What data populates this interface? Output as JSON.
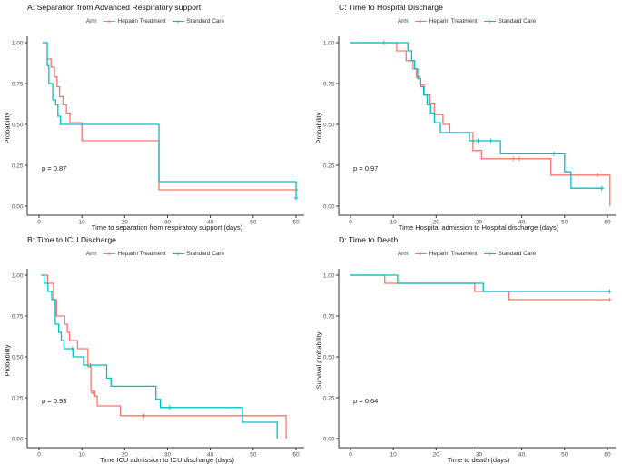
{
  "palette": {
    "heparin_treatment": "#F8766D",
    "standard_care": "#00BFC4",
    "axis": "#333333",
    "tick_label": "#4d4d4d"
  },
  "chart_data": [
    {
      "id": "A",
      "type": "line",
      "subtype": "kaplan-meier-step",
      "title": "A: Separation from Advanced Respiratory support",
      "xlabel": "Time to separation from respiratory support (days)",
      "ylabel": "Probability",
      "p_label": "p = 0.87",
      "legend": {
        "title": "Arm",
        "entries": [
          "Heparin Treatment",
          "Standard Care"
        ]
      },
      "xlim": [
        0,
        62
      ],
      "ylim": [
        0,
        1
      ],
      "grid": false,
      "xticks": [
        0,
        10,
        20,
        30,
        40,
        50,
        60
      ],
      "yticks": [
        0,
        0.25,
        0.5,
        0.75,
        1
      ],
      "ytick_labels": [
        "0.00",
        "0.25",
        "0.50",
        "0.75",
        "1.00"
      ],
      "series": [
        {
          "name": "Heparin Treatment",
          "color": "#F8766D",
          "steps": [
            [
              1.9,
              0.9
            ],
            [
              2.8,
              0.9
            ],
            [
              2.8,
              0.85
            ],
            [
              3.6,
              0.85
            ],
            [
              3.6,
              0.79
            ],
            [
              4.2,
              0.79
            ],
            [
              4.2,
              0.73
            ],
            [
              4.8,
              0.73
            ],
            [
              4.8,
              0.67
            ],
            [
              5.6,
              0.67
            ],
            [
              5.6,
              0.62
            ],
            [
              6.4,
              0.62
            ],
            [
              6.4,
              0.57
            ],
            [
              7.2,
              0.57
            ],
            [
              7.2,
              0.51
            ],
            [
              10,
              0.51
            ],
            [
              10,
              0.4
            ],
            [
              28,
              0.4
            ],
            [
              28,
              0.1
            ],
            [
              60.5,
              0.1
            ]
          ],
          "censors": []
        },
        {
          "name": "Standard Care",
          "color": "#00BFC4",
          "steps": [
            [
              0.8,
              1
            ],
            [
              1.9,
              1
            ],
            [
              1.9,
              0.86
            ],
            [
              2.3,
              0.86
            ],
            [
              2.3,
              0.75
            ],
            [
              3.2,
              0.75
            ],
            [
              3.2,
              0.65
            ],
            [
              3.9,
              0.65
            ],
            [
              3.9,
              0.62
            ],
            [
              4.4,
              0.62
            ],
            [
              4.4,
              0.55
            ],
            [
              5,
              0.55
            ],
            [
              5,
              0.5
            ],
            [
              28,
              0.5
            ],
            [
              28,
              0.15
            ],
            [
              60,
              0.15
            ],
            [
              60,
              0.05
            ]
          ],
          "censors": [
            [
              60,
              0.05
            ]
          ]
        }
      ]
    },
    {
      "id": "C",
      "type": "line",
      "subtype": "kaplan-meier-step",
      "title": "C: Time to Hospital Discharge",
      "xlabel": "Time Hospital admission to Hospital discharge (days)",
      "ylabel": "Probability",
      "p_label": "p = 0.97",
      "legend": {
        "title": "Arm",
        "entries": [
          "Heparin Treatment",
          "Standard Care"
        ]
      },
      "xlim": [
        0,
        62
      ],
      "ylim": [
        0,
        1
      ],
      "grid": false,
      "xticks": [
        0,
        10,
        20,
        30,
        40,
        50,
        60
      ],
      "yticks": [
        0,
        0.25,
        0.5,
        0.75,
        1
      ],
      "ytick_labels": [
        "0.00",
        "0.25",
        "0.50",
        "0.75",
        "1.00"
      ],
      "series": [
        {
          "name": "Heparin Treatment",
          "color": "#F8766D",
          "steps": [
            [
              0,
              1
            ],
            [
              10.8,
              1
            ],
            [
              10.8,
              0.95
            ],
            [
              13,
              0.95
            ],
            [
              13,
              0.89
            ],
            [
              14.6,
              0.89
            ],
            [
              14.6,
              0.84
            ],
            [
              15.4,
              0.84
            ],
            [
              15.4,
              0.79
            ],
            [
              16.2,
              0.79
            ],
            [
              16.2,
              0.74
            ],
            [
              17.2,
              0.74
            ],
            [
              17.2,
              0.68
            ],
            [
              18.6,
              0.68
            ],
            [
              18.6,
              0.63
            ],
            [
              19.6,
              0.63
            ],
            [
              19.6,
              0.56
            ],
            [
              21.6,
              0.56
            ],
            [
              21.6,
              0.5
            ],
            [
              23.2,
              0.5
            ],
            [
              23.2,
              0.45
            ],
            [
              28.6,
              0.45
            ],
            [
              28.6,
              0.34
            ],
            [
              30.6,
              0.34
            ],
            [
              30.6,
              0.29
            ],
            [
              46.8,
              0.29
            ],
            [
              46.8,
              0.19
            ],
            [
              60.6,
              0.19
            ],
            [
              60.6,
              0
            ]
          ],
          "censors": [
            [
              38,
              0.29
            ],
            [
              39.4,
              0.29
            ],
            [
              57.7,
              0.19
            ]
          ]
        },
        {
          "name": "Standard Care",
          "color": "#00BFC4",
          "steps": [
            [
              0,
              1
            ],
            [
              13.4,
              1
            ],
            [
              13.4,
              0.95
            ],
            [
              14.3,
              0.95
            ],
            [
              14.3,
              0.89
            ],
            [
              15,
              0.89
            ],
            [
              15,
              0.84
            ],
            [
              15.7,
              0.84
            ],
            [
              15.7,
              0.78
            ],
            [
              16.4,
              0.78
            ],
            [
              16.4,
              0.73
            ],
            [
              17.1,
              0.73
            ],
            [
              17.1,
              0.68
            ],
            [
              17.9,
              0.68
            ],
            [
              17.9,
              0.62
            ],
            [
              18.7,
              0.62
            ],
            [
              18.7,
              0.57
            ],
            [
              19.6,
              0.57
            ],
            [
              19.6,
              0.51
            ],
            [
              21,
              0.51
            ],
            [
              21,
              0.45
            ],
            [
              27.8,
              0.45
            ],
            [
              27.8,
              0.4
            ],
            [
              35,
              0.4
            ],
            [
              35,
              0.32
            ],
            [
              50,
              0.32
            ],
            [
              50,
              0.21
            ],
            [
              51.5,
              0.21
            ],
            [
              51.5,
              0.11
            ],
            [
              58.7,
              0.11
            ]
          ],
          "censors": [
            [
              7.8,
              1
            ],
            [
              29.8,
              0.4
            ],
            [
              32.8,
              0.4
            ],
            [
              47.5,
              0.32
            ],
            [
              58.7,
              0.11
            ]
          ]
        }
      ]
    },
    {
      "id": "B",
      "type": "line",
      "subtype": "kaplan-meier-step",
      "title": "B: Time to ICU Discharge",
      "xlabel": "Time ICU admission to ICU discharge (days)",
      "ylabel": "Probability",
      "p_label": "p = 0.93",
      "legend": {
        "title": "Arm",
        "entries": [
          "Heparin Treatment",
          "Standard Care"
        ]
      },
      "xlim": [
        0,
        62
      ],
      "ylim": [
        0,
        1
      ],
      "grid": false,
      "xticks": [
        0,
        10,
        20,
        30,
        40,
        50,
        60
      ],
      "yticks": [
        0,
        0.25,
        0.5,
        0.75,
        1
      ],
      "ytick_labels": [
        "0.00",
        "0.25",
        "0.50",
        "0.75",
        "1.00"
      ],
      "series": [
        {
          "name": "Heparin Treatment",
          "color": "#F8766D",
          "steps": [
            [
              0.5,
              1
            ],
            [
              2,
              1
            ],
            [
              2,
              0.95
            ],
            [
              3.4,
              0.95
            ],
            [
              3.4,
              0.85
            ],
            [
              4.1,
              0.85
            ],
            [
              4.1,
              0.75
            ],
            [
              6,
              0.75
            ],
            [
              6,
              0.7
            ],
            [
              6.6,
              0.7
            ],
            [
              6.6,
              0.65
            ],
            [
              7.1,
              0.65
            ],
            [
              7.1,
              0.6
            ],
            [
              9,
              0.6
            ],
            [
              9,
              0.55
            ],
            [
              11.4,
              0.55
            ],
            [
              11.4,
              0.44
            ],
            [
              12.1,
              0.44
            ],
            [
              12.1,
              0.29
            ],
            [
              13,
              0.29
            ],
            [
              13,
              0.26
            ],
            [
              13.6,
              0.26
            ],
            [
              13.6,
              0.2
            ],
            [
              19,
              0.2
            ],
            [
              19,
              0.14
            ],
            [
              57.7,
              0.14
            ],
            [
              57.7,
              0
            ]
          ],
          "censors": [
            [
              12.6,
              0.28
            ],
            [
              24.5,
              0.14
            ]
          ]
        },
        {
          "name": "Standard Care",
          "color": "#00BFC4",
          "steps": [
            [
              0.5,
              1
            ],
            [
              1.2,
              1
            ],
            [
              1.2,
              0.95
            ],
            [
              2.1,
              0.95
            ],
            [
              2.1,
              0.9
            ],
            [
              3,
              0.9
            ],
            [
              3,
              0.85
            ],
            [
              3.8,
              0.85
            ],
            [
              3.8,
              0.7
            ],
            [
              4.6,
              0.7
            ],
            [
              4.6,
              0.65
            ],
            [
              5.2,
              0.65
            ],
            [
              5.2,
              0.6
            ],
            [
              5.8,
              0.6
            ],
            [
              5.8,
              0.55
            ],
            [
              7.9,
              0.55
            ],
            [
              7.9,
              0.5
            ],
            [
              10.4,
              0.5
            ],
            [
              10.4,
              0.45
            ],
            [
              15.8,
              0.45
            ],
            [
              15.8,
              0.37
            ],
            [
              16.8,
              0.37
            ],
            [
              16.8,
              0.32
            ],
            [
              27.3,
              0.32
            ],
            [
              27.3,
              0.24
            ],
            [
              28.3,
              0.24
            ],
            [
              28.3,
              0.19
            ],
            [
              47.5,
              0.19
            ],
            [
              47.5,
              0.1
            ],
            [
              55.6,
              0.1
            ],
            [
              55.6,
              0
            ]
          ],
          "censors": [
            [
              7.8,
              0.55
            ],
            [
              12,
              0.45
            ],
            [
              30.5,
              0.19
            ]
          ]
        }
      ]
    },
    {
      "id": "D",
      "type": "line",
      "subtype": "kaplan-meier-step",
      "title": "D: Time to Death",
      "xlabel": "Time to death (days)",
      "ylabel": "Survival probability",
      "p_label": "p = 0.64",
      "legend": {
        "title": "Arm",
        "entries": [
          "Heparin Treatment",
          "Standard Care"
        ]
      },
      "xlim": [
        0,
        62
      ],
      "ylim": [
        0,
        1
      ],
      "grid": false,
      "xticks": [
        0,
        10,
        20,
        30,
        40,
        50,
        60
      ],
      "yticks": [
        0,
        0.25,
        0.5,
        0.75,
        1
      ],
      "ytick_labels": [
        "0.00",
        "0.25",
        "0.50",
        "0.75",
        "1.00"
      ],
      "series": [
        {
          "name": "Heparin Treatment",
          "color": "#F8766D",
          "steps": [
            [
              0,
              1
            ],
            [
              8,
              1
            ],
            [
              8,
              0.95
            ],
            [
              29,
              0.95
            ],
            [
              29,
              0.9
            ],
            [
              37,
              0.9
            ],
            [
              37,
              0.85
            ],
            [
              60.5,
              0.85
            ]
          ],
          "censors": [
            [
              60.5,
              0.85
            ]
          ]
        },
        {
          "name": "Standard Care",
          "color": "#00BFC4",
          "steps": [
            [
              0,
              1
            ],
            [
              11,
              1
            ],
            [
              11,
              0.95
            ],
            [
              31,
              0.95
            ],
            [
              31,
              0.9
            ],
            [
              60.5,
              0.9
            ]
          ],
          "censors": [
            [
              60.5,
              0.9
            ]
          ]
        }
      ]
    }
  ]
}
